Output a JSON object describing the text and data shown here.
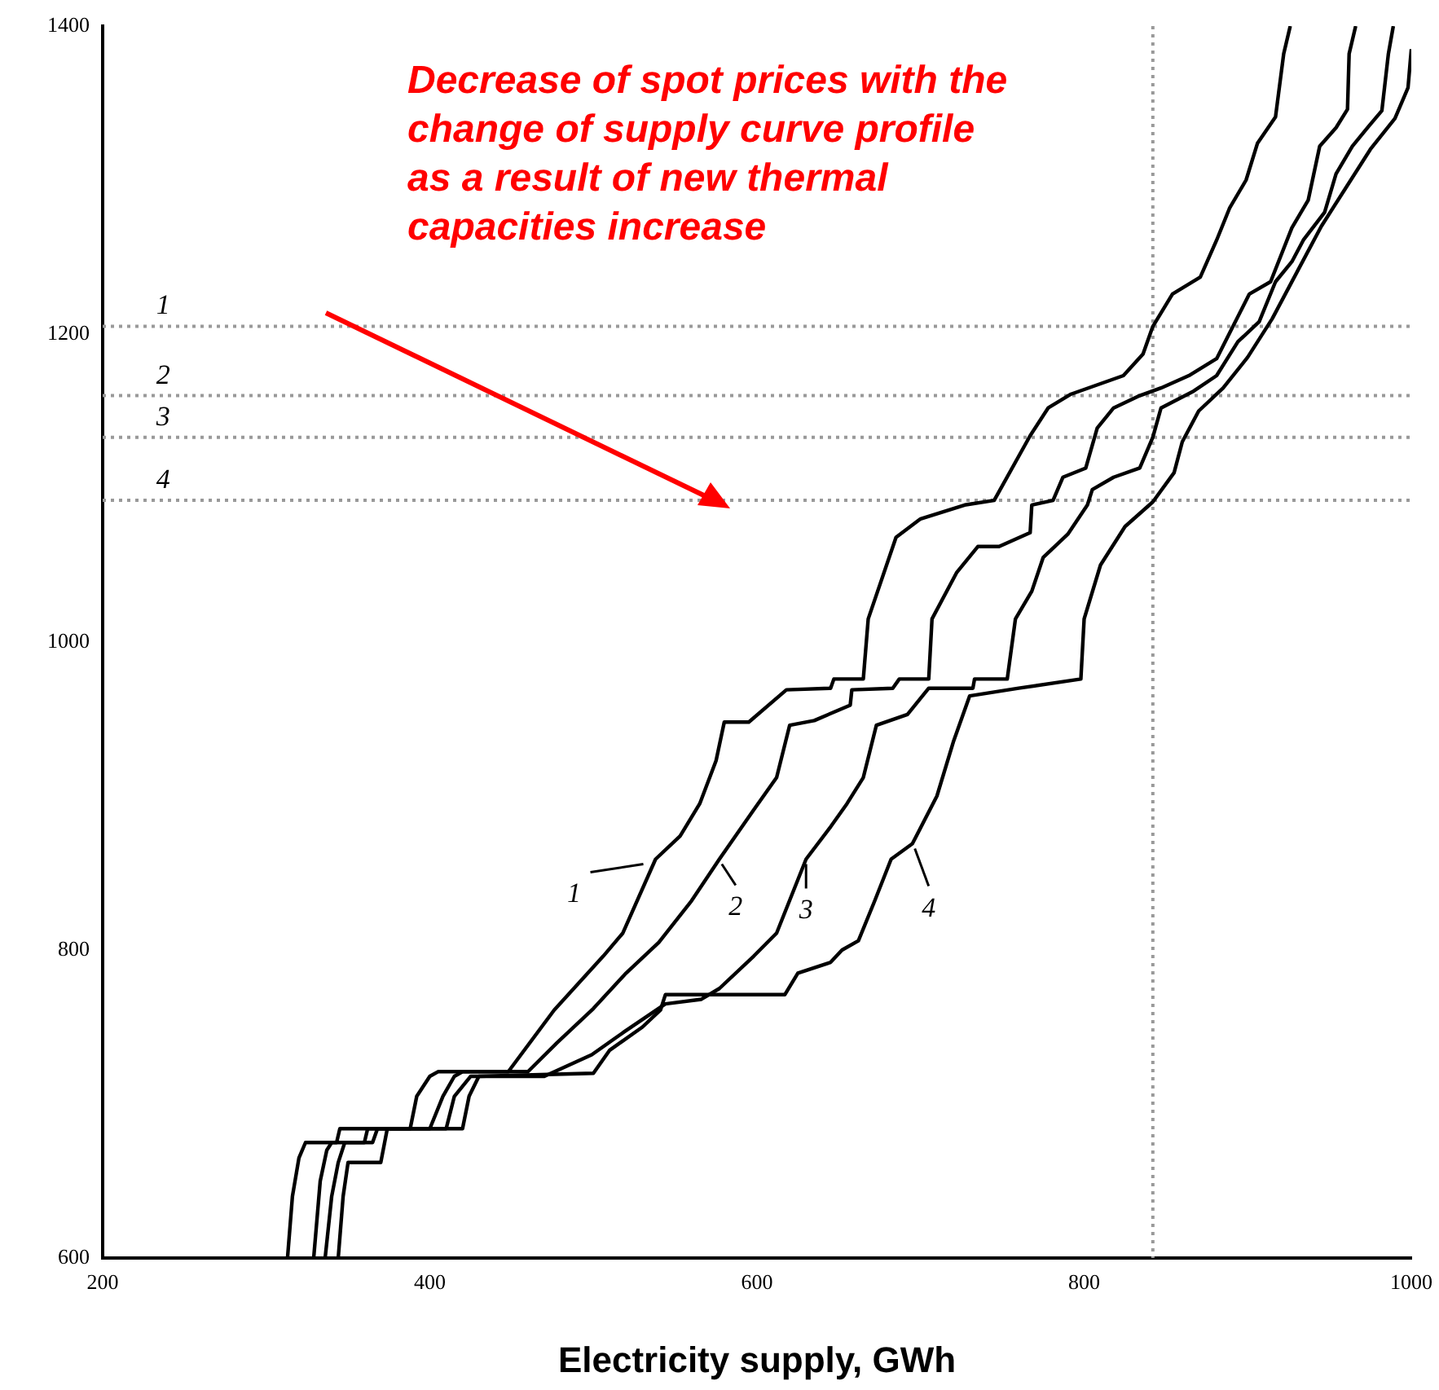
{
  "chart_data": {
    "type": "line",
    "xlabel": "Electricity supply, GWh",
    "xlim": [
      200,
      1000
    ],
    "xticks": [
      200,
      400,
      600,
      800,
      1000
    ],
    "ylim": [
      600,
      1400
    ],
    "yticks": [
      600,
      800,
      1000,
      1200,
      1400
    ],
    "grid": false,
    "legend": false,
    "marker": "none",
    "line_style": "solid",
    "series": [
      {
        "color": "#000000",
        "x": [
          313,
          316,
          320,
          324,
          343,
          345,
          388,
          392,
          400,
          405,
          448,
          476,
          506,
          518,
          538,
          553,
          565,
          575,
          580,
          595,
          618,
          645,
          647,
          665,
          668,
          685,
          700,
          727,
          745,
          767,
          778,
          792,
          824,
          836,
          842,
          854,
          871,
          881,
          889,
          899,
          906,
          917,
          922,
          926
        ],
        "values": [
          600,
          640,
          665,
          675,
          675,
          684,
          684,
          705,
          718,
          721,
          721,
          761,
          796,
          811,
          859,
          874,
          895,
          923,
          948,
          948,
          969,
          970,
          976,
          976,
          1015,
          1068,
          1080,
          1089,
          1092,
          1134,
          1152,
          1161,
          1173,
          1187,
          1205,
          1226,
          1237,
          1261,
          1282,
          1300,
          1324,
          1341,
          1382,
          1400
        ]
      },
      {
        "color": "#000000",
        "x": [
          329,
          333,
          337,
          340,
          360,
          362,
          400,
          408,
          415,
          420,
          460,
          478,
          500,
          520,
          540,
          560,
          577,
          598,
          612,
          620,
          635,
          657,
          658,
          683,
          687,
          705,
          707,
          722,
          735,
          748,
          767,
          768,
          781,
          787,
          801,
          808,
          818,
          834,
          847,
          864,
          881,
          891,
          901,
          914,
          927,
          937,
          944,
          954,
          961,
          962,
          966
        ],
        "values": [
          600,
          650,
          670,
          675,
          675,
          684,
          684,
          705,
          718,
          721,
          721,
          740,
          762,
          785,
          805,
          832,
          859,
          891,
          912,
          946,
          949,
          959,
          969,
          970,
          976,
          976,
          1015,
          1045,
          1062,
          1062,
          1071,
          1089,
          1092,
          1107,
          1113,
          1139,
          1152,
          1160,
          1165,
          1173,
          1184,
          1205,
          1226,
          1234,
          1269,
          1287,
          1322,
          1334,
          1346,
          1382,
          1400
        ]
      },
      {
        "color": "#000000",
        "x": [
          336,
          340,
          344,
          348,
          365,
          368,
          410,
          415,
          425,
          470,
          499,
          519,
          544,
          566,
          577,
          598,
          612,
          630,
          645,
          655,
          665,
          673,
          692,
          705,
          732,
          733,
          753,
          758,
          768,
          775,
          790,
          802,
          805,
          818,
          834,
          842,
          847,
          867,
          881,
          894,
          907,
          917,
          927,
          934,
          947,
          954,
          964,
          974,
          982,
          986,
          989
        ],
        "values": [
          600,
          640,
          662,
          675,
          675,
          684,
          684,
          705,
          718,
          718,
          732,
          747,
          765,
          768,
          775,
          796,
          811,
          859,
          880,
          895,
          912,
          946,
          953,
          970,
          970,
          976,
          976,
          1015,
          1033,
          1055,
          1070,
          1089,
          1099,
          1107,
          1113,
          1133,
          1152,
          1163,
          1173,
          1195,
          1208,
          1234,
          1247,
          1261,
          1279,
          1304,
          1322,
          1335,
          1345,
          1382,
          1400
        ]
      },
      {
        "color": "#000000",
        "x": [
          344,
          347,
          350,
          370,
          374,
          420,
          424,
          430,
          500,
          510,
          530,
          541,
          544,
          617,
          625,
          645,
          652,
          662,
          672,
          682,
          695,
          710,
          720,
          730,
          760,
          798,
          800,
          810,
          825,
          842,
          855,
          860,
          870,
          885,
          900,
          915,
          930,
          945,
          960,
          975,
          990,
          998,
          1000
        ],
        "values": [
          600,
          640,
          662,
          662,
          684,
          684,
          705,
          718,
          720,
          735,
          750,
          761,
          771,
          771,
          785,
          792,
          800,
          806,
          832,
          859,
          869,
          900,
          935,
          965,
          970,
          976,
          1015,
          1050,
          1075,
          1091,
          1110,
          1130,
          1150,
          1165,
          1185,
          1210,
          1240,
          1270,
          1295,
          1320,
          1340,
          1360,
          1385
        ]
      }
    ],
    "ref_lines": [
      {
        "axis": "y",
        "value": 1205,
        "color": "#999999",
        "line_style": "dotted"
      },
      {
        "axis": "y",
        "value": 1160,
        "color": "#999999",
        "line_style": "dotted"
      },
      {
        "axis": "y",
        "value": 1133,
        "color": "#999999",
        "line_style": "dotted"
      },
      {
        "axis": "y",
        "value": 1092,
        "color": "#999999",
        "line_style": "dotted"
      },
      {
        "axis": "x",
        "value": 842,
        "color": "#999999",
        "line_style": "dotted"
      }
    ],
    "annotations": [
      "Decrease of spot prices with the change of supply curve profile as a result of new thermal capacities increase",
      {
        "text": "1",
        "x": 237,
        "y": 1205
      },
      {
        "text": "2",
        "x": 237,
        "y": 1160
      },
      {
        "text": "3",
        "x": 237,
        "y": 1133
      },
      {
        "text": "4",
        "x": 237,
        "y": 1092
      },
      {
        "text": "1",
        "x": 538,
        "y": 859
      },
      {
        "text": "2",
        "x": 577,
        "y": 859
      },
      {
        "text": "3",
        "x": 630,
        "y": 859
      },
      {
        "text": "4",
        "x": 695,
        "y": 869
      }
    ]
  }
}
